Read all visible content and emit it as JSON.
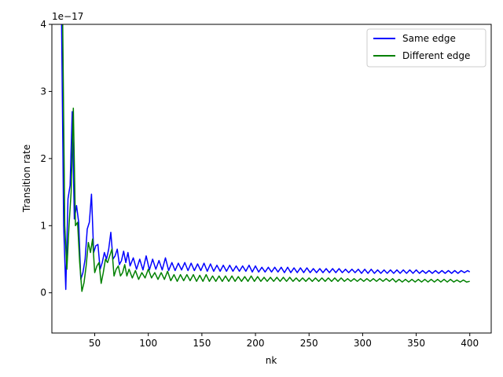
{
  "chart_data": {
    "type": "line",
    "title": "",
    "xlabel": "nk",
    "ylabel": "Transition rate",
    "offset_text": "1e−17",
    "xlim": [
      10,
      420
    ],
    "ylim": [
      -0.6,
      4.0
    ],
    "x_ticks": [
      50,
      100,
      150,
      200,
      250,
      300,
      350,
      400
    ],
    "x_tick_labels": [
      "50",
      "100",
      "150",
      "200",
      "250",
      "300",
      "350",
      "400"
    ],
    "y_ticks": [
      0,
      1,
      2,
      3,
      4
    ],
    "y_tick_labels": [
      "0",
      "1",
      "2",
      "3",
      "4"
    ],
    "grid": false,
    "legend_position": "top-right",
    "series": [
      {
        "name": "Same edge",
        "color": "#0000ff",
        "points": [
          [
            19,
            4.1
          ],
          [
            21,
            1.0
          ],
          [
            23,
            0.05
          ],
          [
            25,
            1.4
          ],
          [
            27,
            1.6
          ],
          [
            29,
            2.7
          ],
          [
            31,
            1.1
          ],
          [
            33,
            1.3
          ],
          [
            35,
            1.05
          ],
          [
            37,
            0.2
          ],
          [
            39,
            0.3
          ],
          [
            41,
            0.5
          ],
          [
            43,
            0.95
          ],
          [
            45,
            1.05
          ],
          [
            47,
            1.47
          ],
          [
            49,
            0.6
          ],
          [
            51,
            0.7
          ],
          [
            53,
            0.72
          ],
          [
            55,
            0.35
          ],
          [
            57,
            0.45
          ],
          [
            59,
            0.6
          ],
          [
            61,
            0.5
          ],
          [
            63,
            0.65
          ],
          [
            65,
            0.9
          ],
          [
            67,
            0.5
          ],
          [
            69,
            0.55
          ],
          [
            71,
            0.65
          ],
          [
            73,
            0.42
          ],
          [
            75,
            0.48
          ],
          [
            77,
            0.62
          ],
          [
            79,
            0.45
          ],
          [
            81,
            0.6
          ],
          [
            83,
            0.4
          ],
          [
            86,
            0.52
          ],
          [
            89,
            0.35
          ],
          [
            92,
            0.5
          ],
          [
            95,
            0.34
          ],
          [
            98,
            0.55
          ],
          [
            101,
            0.34
          ],
          [
            104,
            0.5
          ],
          [
            107,
            0.35
          ],
          [
            110,
            0.48
          ],
          [
            113,
            0.34
          ],
          [
            116,
            0.52
          ],
          [
            119,
            0.33
          ],
          [
            122,
            0.45
          ],
          [
            125,
            0.33
          ],
          [
            128,
            0.44
          ],
          [
            131,
            0.34
          ],
          [
            134,
            0.45
          ],
          [
            137,
            0.33
          ],
          [
            140,
            0.44
          ],
          [
            143,
            0.33
          ],
          [
            146,
            0.43
          ],
          [
            149,
            0.33
          ],
          [
            152,
            0.44
          ],
          [
            155,
            0.32
          ],
          [
            158,
            0.43
          ],
          [
            161,
            0.32
          ],
          [
            164,
            0.41
          ],
          [
            167,
            0.32
          ],
          [
            170,
            0.41
          ],
          [
            173,
            0.32
          ],
          [
            176,
            0.41
          ],
          [
            179,
            0.32
          ],
          [
            182,
            0.4
          ],
          [
            185,
            0.32
          ],
          [
            188,
            0.4
          ],
          [
            191,
            0.32
          ],
          [
            194,
            0.41
          ],
          [
            197,
            0.31
          ],
          [
            200,
            0.4
          ],
          [
            203,
            0.31
          ],
          [
            206,
            0.38
          ],
          [
            209,
            0.31
          ],
          [
            212,
            0.38
          ],
          [
            215,
            0.31
          ],
          [
            218,
            0.38
          ],
          [
            221,
            0.31
          ],
          [
            224,
            0.38
          ],
          [
            227,
            0.3
          ],
          [
            230,
            0.38
          ],
          [
            233,
            0.3
          ],
          [
            236,
            0.37
          ],
          [
            239,
            0.3
          ],
          [
            242,
            0.37
          ],
          [
            245,
            0.3
          ],
          [
            248,
            0.37
          ],
          [
            251,
            0.3
          ],
          [
            254,
            0.36
          ],
          [
            257,
            0.3
          ],
          [
            260,
            0.36
          ],
          [
            263,
            0.3
          ],
          [
            266,
            0.36
          ],
          [
            269,
            0.3
          ],
          [
            272,
            0.36
          ],
          [
            275,
            0.3
          ],
          [
            278,
            0.36
          ],
          [
            281,
            0.3
          ],
          [
            284,
            0.35
          ],
          [
            287,
            0.3
          ],
          [
            290,
            0.35
          ],
          [
            293,
            0.3
          ],
          [
            296,
            0.35
          ],
          [
            299,
            0.29
          ],
          [
            302,
            0.35
          ],
          [
            305,
            0.29
          ],
          [
            308,
            0.35
          ],
          [
            311,
            0.29
          ],
          [
            314,
            0.34
          ],
          [
            317,
            0.29
          ],
          [
            320,
            0.34
          ],
          [
            323,
            0.29
          ],
          [
            326,
            0.34
          ],
          [
            329,
            0.29
          ],
          [
            332,
            0.34
          ],
          [
            335,
            0.29
          ],
          [
            338,
            0.34
          ],
          [
            341,
            0.29
          ],
          [
            344,
            0.34
          ],
          [
            347,
            0.29
          ],
          [
            350,
            0.34
          ],
          [
            353,
            0.29
          ],
          [
            356,
            0.33
          ],
          [
            359,
            0.29
          ],
          [
            362,
            0.33
          ],
          [
            365,
            0.29
          ],
          [
            368,
            0.33
          ],
          [
            371,
            0.29
          ],
          [
            374,
            0.33
          ],
          [
            377,
            0.29
          ],
          [
            380,
            0.33
          ],
          [
            383,
            0.29
          ],
          [
            386,
            0.33
          ],
          [
            389,
            0.29
          ],
          [
            392,
            0.33
          ],
          [
            395,
            0.3
          ],
          [
            398,
            0.33
          ],
          [
            400,
            0.31
          ]
        ]
      },
      {
        "name": "Different edge",
        "color": "#008000",
        "points": [
          [
            20,
            4.2
          ],
          [
            22,
            1.0
          ],
          [
            24,
            0.35
          ],
          [
            26,
            1.0
          ],
          [
            28,
            1.5
          ],
          [
            30,
            2.75
          ],
          [
            32,
            1.0
          ],
          [
            34,
            1.05
          ],
          [
            36,
            0.45
          ],
          [
            38,
            0.02
          ],
          [
            40,
            0.15
          ],
          [
            42,
            0.4
          ],
          [
            44,
            0.75
          ],
          [
            46,
            0.6
          ],
          [
            48,
            0.8
          ],
          [
            50,
            0.3
          ],
          [
            52,
            0.4
          ],
          [
            54,
            0.45
          ],
          [
            56,
            0.14
          ],
          [
            58,
            0.3
          ],
          [
            60,
            0.5
          ],
          [
            62,
            0.45
          ],
          [
            64,
            0.55
          ],
          [
            66,
            0.65
          ],
          [
            68,
            0.25
          ],
          [
            70,
            0.35
          ],
          [
            72,
            0.4
          ],
          [
            74,
            0.25
          ],
          [
            76,
            0.3
          ],
          [
            78,
            0.42
          ],
          [
            80,
            0.25
          ],
          [
            82,
            0.35
          ],
          [
            85,
            0.22
          ],
          [
            88,
            0.33
          ],
          [
            91,
            0.2
          ],
          [
            94,
            0.3
          ],
          [
            97,
            0.22
          ],
          [
            100,
            0.35
          ],
          [
            103,
            0.22
          ],
          [
            106,
            0.3
          ],
          [
            109,
            0.2
          ],
          [
            112,
            0.3
          ],
          [
            115,
            0.2
          ],
          [
            118,
            0.32
          ],
          [
            121,
            0.18
          ],
          [
            124,
            0.27
          ],
          [
            127,
            0.17
          ],
          [
            130,
            0.27
          ],
          [
            133,
            0.18
          ],
          [
            136,
            0.27
          ],
          [
            139,
            0.18
          ],
          [
            142,
            0.27
          ],
          [
            145,
            0.17
          ],
          [
            148,
            0.26
          ],
          [
            151,
            0.17
          ],
          [
            154,
            0.27
          ],
          [
            157,
            0.17
          ],
          [
            160,
            0.25
          ],
          [
            163,
            0.17
          ],
          [
            166,
            0.25
          ],
          [
            169,
            0.17
          ],
          [
            172,
            0.25
          ],
          [
            175,
            0.17
          ],
          [
            178,
            0.25
          ],
          [
            181,
            0.17
          ],
          [
            184,
            0.24
          ],
          [
            187,
            0.17
          ],
          [
            190,
            0.24
          ],
          [
            193,
            0.17
          ],
          [
            196,
            0.25
          ],
          [
            199,
            0.17
          ],
          [
            202,
            0.24
          ],
          [
            205,
            0.17
          ],
          [
            208,
            0.23
          ],
          [
            211,
            0.17
          ],
          [
            214,
            0.23
          ],
          [
            217,
            0.17
          ],
          [
            220,
            0.23
          ],
          [
            223,
            0.17
          ],
          [
            226,
            0.23
          ],
          [
            229,
            0.17
          ],
          [
            232,
            0.23
          ],
          [
            235,
            0.17
          ],
          [
            238,
            0.22
          ],
          [
            241,
            0.17
          ],
          [
            244,
            0.22
          ],
          [
            247,
            0.17
          ],
          [
            250,
            0.22
          ],
          [
            253,
            0.17
          ],
          [
            256,
            0.22
          ],
          [
            259,
            0.17
          ],
          [
            262,
            0.22
          ],
          [
            265,
            0.17
          ],
          [
            268,
            0.22
          ],
          [
            271,
            0.17
          ],
          [
            274,
            0.22
          ],
          [
            277,
            0.17
          ],
          [
            280,
            0.22
          ],
          [
            283,
            0.17
          ],
          [
            286,
            0.21
          ],
          [
            289,
            0.17
          ],
          [
            292,
            0.21
          ],
          [
            295,
            0.17
          ],
          [
            298,
            0.21
          ],
          [
            301,
            0.17
          ],
          [
            304,
            0.21
          ],
          [
            307,
            0.17
          ],
          [
            310,
            0.21
          ],
          [
            313,
            0.17
          ],
          [
            316,
            0.21
          ],
          [
            319,
            0.17
          ],
          [
            322,
            0.21
          ],
          [
            325,
            0.17
          ],
          [
            328,
            0.21
          ],
          [
            331,
            0.16
          ],
          [
            334,
            0.2
          ],
          [
            337,
            0.16
          ],
          [
            340,
            0.2
          ],
          [
            343,
            0.16
          ],
          [
            346,
            0.2
          ],
          [
            349,
            0.16
          ],
          [
            352,
            0.2
          ],
          [
            355,
            0.16
          ],
          [
            358,
            0.2
          ],
          [
            361,
            0.16
          ],
          [
            364,
            0.2
          ],
          [
            367,
            0.16
          ],
          [
            370,
            0.2
          ],
          [
            373,
            0.16
          ],
          [
            376,
            0.2
          ],
          [
            379,
            0.16
          ],
          [
            382,
            0.2
          ],
          [
            385,
            0.16
          ],
          [
            388,
            0.19
          ],
          [
            391,
            0.16
          ],
          [
            394,
            0.19
          ],
          [
            397,
            0.16
          ],
          [
            400,
            0.17
          ]
        ]
      }
    ]
  }
}
